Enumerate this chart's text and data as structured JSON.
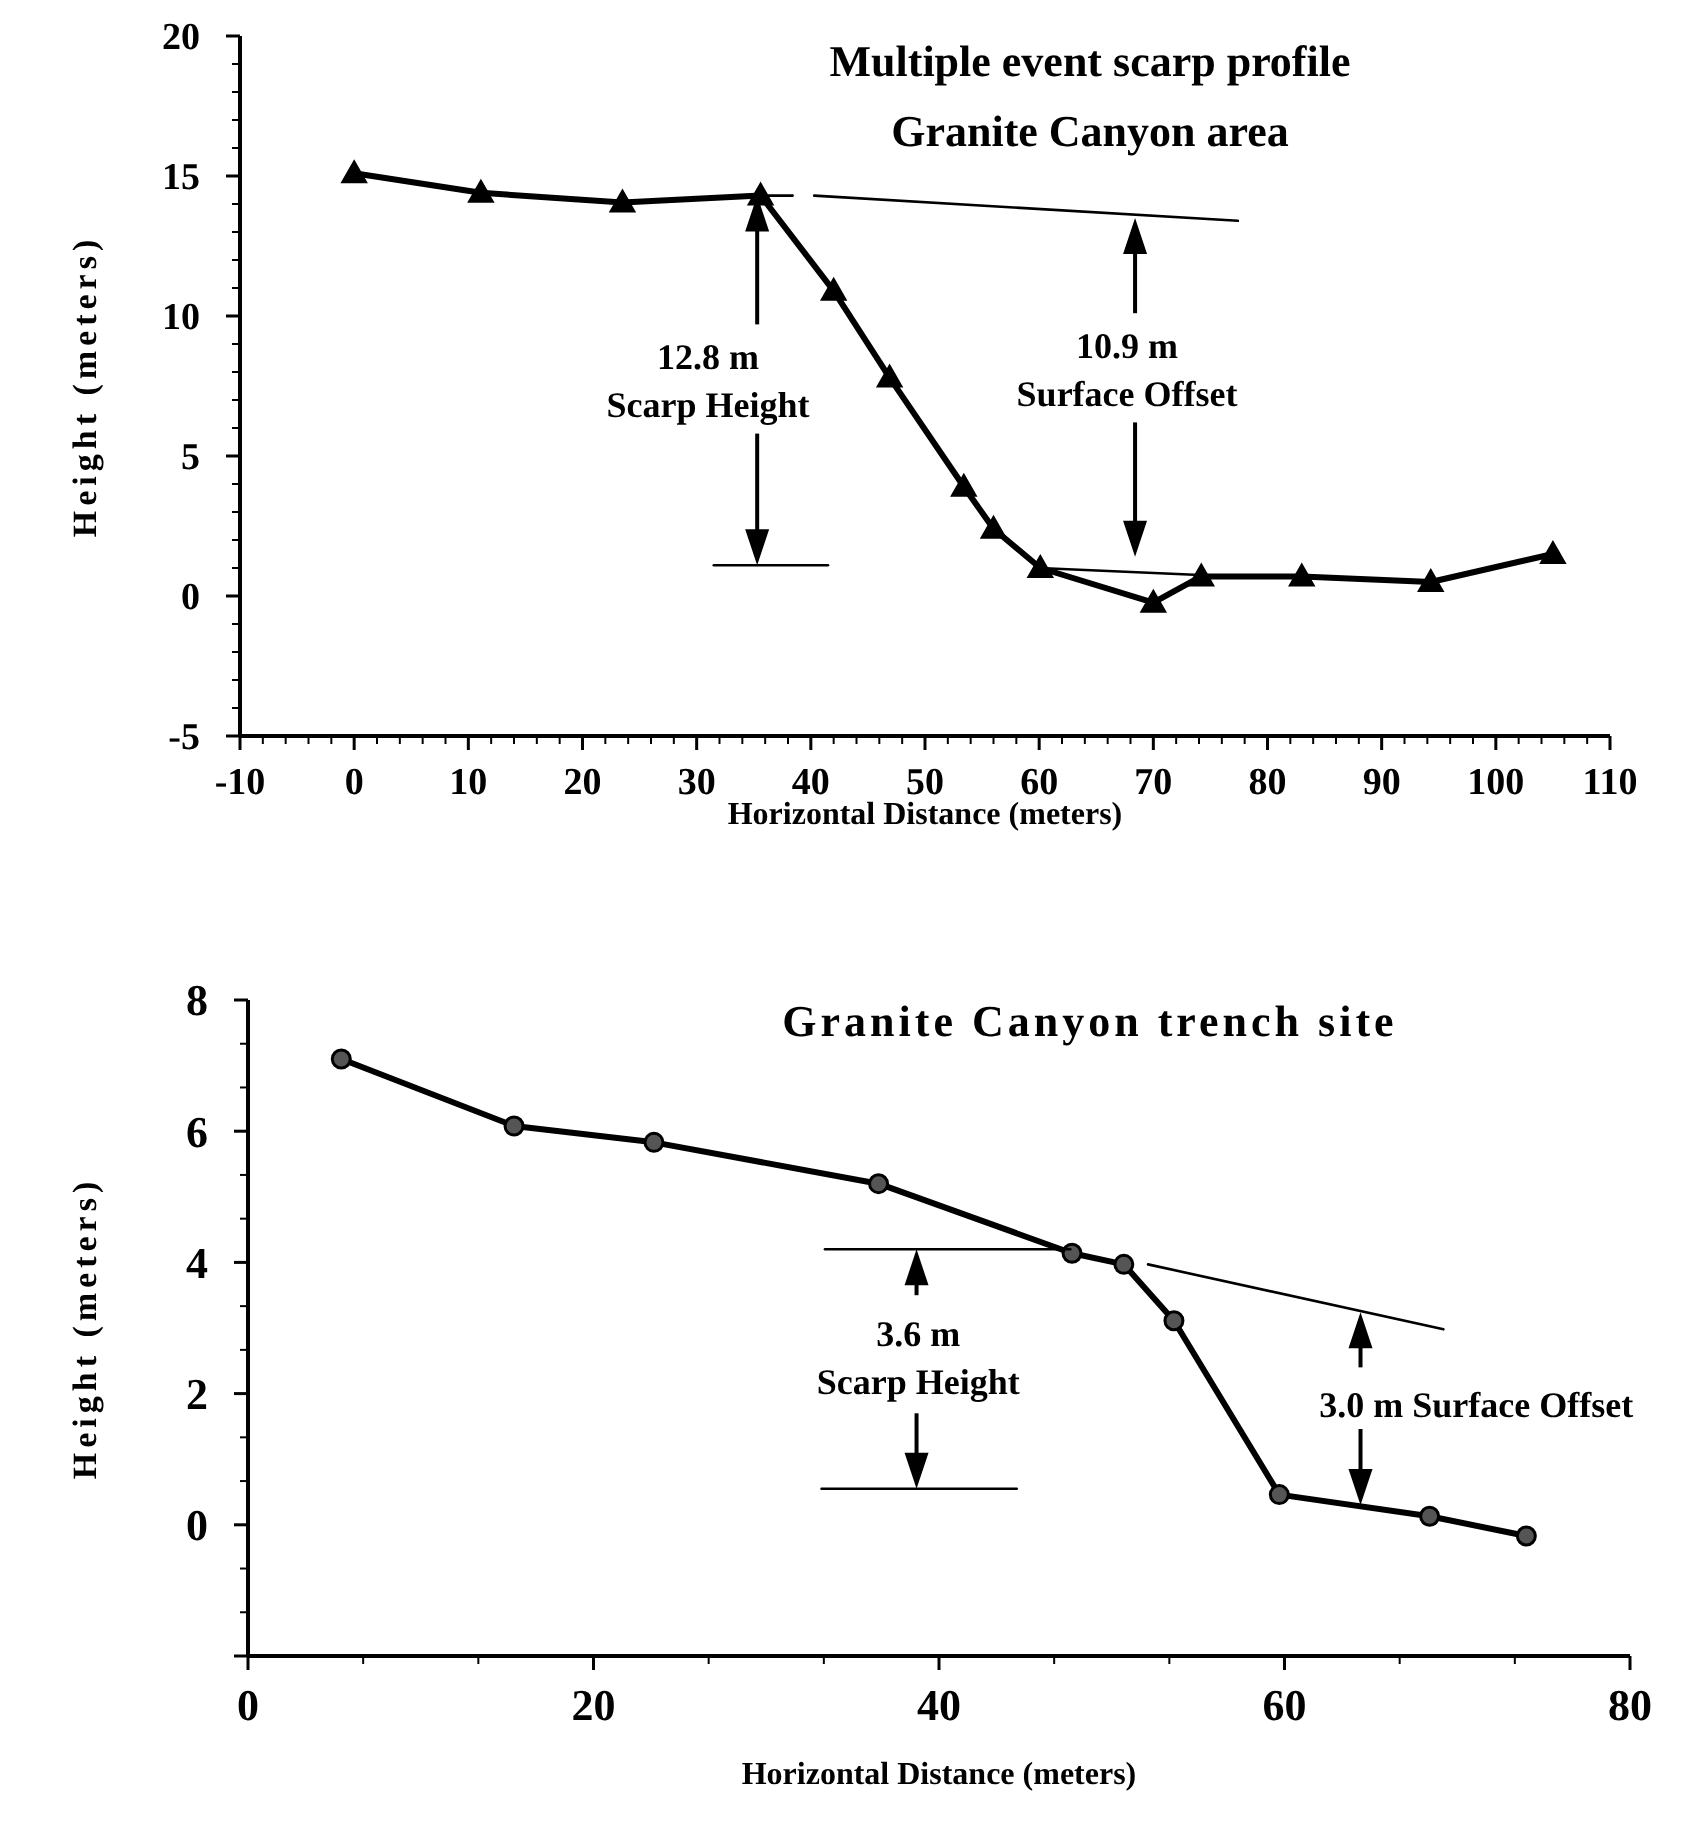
{
  "chart_data": [
    {
      "type": "line",
      "title": "Multiple event scarp profile",
      "subtitle": "Granite Canyon area",
      "xlabel": "Horizontal Distance (meters)",
      "ylabel": "Height (meters)",
      "xlim": [
        -10,
        110
      ],
      "xticks": [
        -10,
        0,
        10,
        20,
        30,
        40,
        50,
        60,
        70,
        80,
        90,
        100,
        110
      ],
      "ylim": [
        -5,
        20
      ],
      "yticks": [
        -5,
        0,
        5,
        10,
        15,
        20
      ],
      "series": [
        {
          "color": "#000000",
          "marker": "triangle",
          "x": [
            0,
            11.1,
            23.5,
            35.6,
            42,
            46.9,
            53.4,
            56,
            60.1,
            70,
            74.2,
            83,
            94.3,
            105
          ],
          "values": [
            15.1,
            14.4,
            14.05,
            14.3,
            10.9,
            7.8,
            3.9,
            2.4,
            1.0,
            -0.24,
            0.7,
            0.7,
            0.5,
            1.5
          ]
        },
        {
          "color": "#000000",
          "marker": "none",
          "x": [
            35.6,
            38.4
          ],
          "values": [
            14.3,
            14.3
          ]
        },
        {
          "color": "#000000",
          "marker": "none",
          "x": [
            31.5,
            41.5
          ],
          "values": [
            1.1,
            1.1
          ]
        },
        {
          "color": "#000000",
          "marker": "none",
          "x": [
            40.3,
            77.4
          ],
          "values": [
            14.3,
            13.4
          ]
        },
        {
          "color": "#000000",
          "marker": "none",
          "x": [
            60,
            79.6
          ],
          "values": [
            1.0,
            0.65
          ]
        }
      ],
      "annotations": [
        "12.8 m\nScarp Height",
        "10.9 m\nSurface Offset"
      ]
    },
    {
      "type": "line",
      "title": "Granite Canyon trench site",
      "xlabel": "Horizontal Distance (meters)",
      "ylabel": "Height (meters)",
      "xlim": [
        0,
        80
      ],
      "xticks": [
        0,
        20,
        40,
        60,
        80
      ],
      "ylim": [
        -2,
        8
      ],
      "yticks": [
        {
          "value": -2,
          "label": null
        },
        0,
        2,
        4,
        6,
        8
      ],
      "series": [
        {
          "color": "#000000",
          "marker": "circle",
          "x": [
            5.4,
            15.4,
            23.5,
            36.5,
            47.7,
            50.7,
            53.6,
            59.7,
            68.4,
            74
          ],
          "values": [
            7.1,
            6.08,
            5.83,
            5.2,
            4.14,
            3.97,
            3.11,
            0.46,
            0.13,
            -0.17
          ]
        },
        {
          "color": "#000000",
          "marker": "none",
          "x": [
            33.4,
            47.6
          ],
          "values": [
            4.2,
            4.2
          ]
        },
        {
          "color": "#000000",
          "marker": "none",
          "x": [
            33.2,
            44.5
          ],
          "values": [
            0.55,
            0.55
          ]
        },
        {
          "color": "#000000",
          "marker": "none",
          "x": [
            52.1,
            69.2
          ],
          "values": [
            3.97,
            2.98
          ]
        }
      ],
      "annotations": [
        "3.6 m\nScarp Height",
        "3.0 m Surface Offset"
      ]
    }
  ]
}
